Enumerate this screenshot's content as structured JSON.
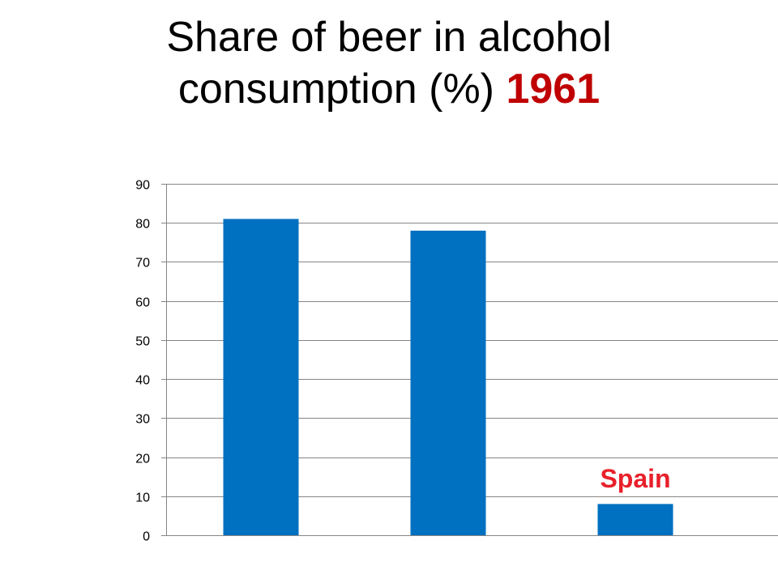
{
  "title": {
    "line1": "Share of beer in alcohol",
    "line2": "consumption (%)",
    "year": "1961",
    "year_color": "#c00000"
  },
  "chart_data": {
    "type": "bar",
    "title": "Share of beer in alcohol consumption (%) 1961",
    "categories": [
      "",
      "",
      "Spain"
    ],
    "values": [
      81,
      78,
      8
    ],
    "ylim": [
      0,
      90
    ],
    "yticks": [
      0,
      10,
      20,
      30,
      40,
      50,
      60,
      70,
      80,
      90
    ],
    "xlabel": "",
    "ylabel": "",
    "grid": true,
    "bar_color": "#0070c0",
    "annotations": [
      {
        "text": "Spain",
        "target_bar": 2,
        "color": "#e8202a"
      }
    ]
  }
}
